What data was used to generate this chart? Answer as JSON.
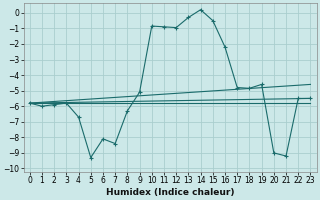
{
  "xlabel": "Humidex (Indice chaleur)",
  "background_color": "#cce8e8",
  "grid_color": "#aacece",
  "line_color": "#1a6b6b",
  "xlim": [
    -0.5,
    23.5
  ],
  "ylim": [
    -10.2,
    0.6
  ],
  "yticks": [
    0,
    -1,
    -2,
    -3,
    -4,
    -5,
    -6,
    -7,
    -8,
    -9,
    -10
  ],
  "xticks": [
    0,
    1,
    2,
    3,
    4,
    5,
    6,
    7,
    8,
    9,
    10,
    11,
    12,
    13,
    14,
    15,
    16,
    17,
    18,
    19,
    20,
    21,
    22,
    23
  ],
  "series1_x": [
    0,
    1,
    2,
    3,
    4,
    5,
    6,
    7,
    8,
    9,
    10,
    11,
    12,
    13,
    14,
    15,
    16,
    17,
    18,
    19,
    20,
    21,
    22,
    23
  ],
  "series1_y": [
    -5.8,
    -6.0,
    -5.9,
    -5.8,
    -6.7,
    -9.3,
    -8.1,
    -8.4,
    -6.3,
    -5.1,
    -0.85,
    -0.9,
    -0.95,
    -0.3,
    0.2,
    -0.5,
    -2.2,
    -4.8,
    -4.85,
    -4.6,
    -9.0,
    -9.2,
    -5.5,
    -5.5
  ],
  "line1_x": [
    0,
    23
  ],
  "line1_y": [
    -5.8,
    -5.5
  ],
  "line2_x": [
    0,
    23
  ],
  "line2_y": [
    -5.8,
    -4.6
  ],
  "line3_x": [
    0,
    23
  ],
  "line3_y": [
    -5.8,
    -5.8
  ]
}
